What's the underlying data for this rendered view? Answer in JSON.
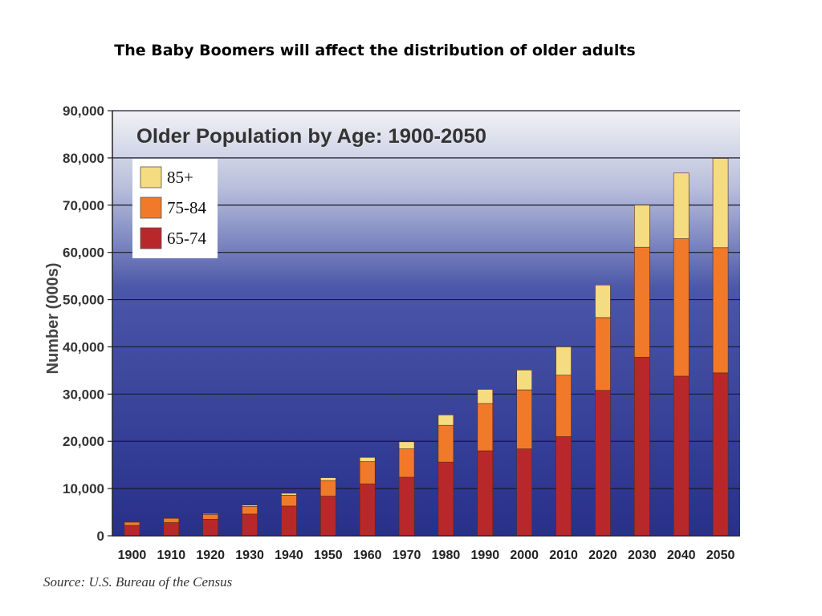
{
  "slide": {
    "title": "The Baby Boomers will affect the distribution of older adults",
    "source": "Source: U.S. Bureau of the Census"
  },
  "chart_data": {
    "type": "bar",
    "stacked": true,
    "title": "Older Population by Age: 1900-2050",
    "xlabel": "",
    "ylabel": "Number (000s)",
    "ylim": [
      0,
      90000
    ],
    "yticks": [
      0,
      10000,
      20000,
      30000,
      40000,
      50000,
      60000,
      70000,
      80000,
      90000
    ],
    "ytick_labels": [
      "0",
      "10,000",
      "20,000",
      "30,000",
      "40,000",
      "50,000",
      "60,000",
      "70,000",
      "80,000",
      "90,000"
    ],
    "grid": true,
    "legend_position": "top-left",
    "categories": [
      "1900",
      "1910",
      "1920",
      "1930",
      "1940",
      "1950",
      "1960",
      "1970",
      "1980",
      "1990",
      "2000",
      "2010",
      "2020",
      "2030",
      "2040",
      "2050"
    ],
    "series": [
      {
        "name": "65-74",
        "color": "#b8282a",
        "values": [
          2200,
          2800,
          3500,
          4600,
          6300,
          8400,
          11000,
          12400,
          15600,
          18000,
          18400,
          21000,
          30800,
          37800,
          33800,
          34500
        ]
      },
      {
        "name": "75-84",
        "color": "#f07a2a",
        "values": [
          700,
          900,
          1000,
          1600,
          2300,
          3300,
          4700,
          6000,
          7800,
          10000,
          12500,
          13000,
          15400,
          23300,
          29100,
          26500
        ]
      },
      {
        "name": "85+",
        "color": "#f6dc80",
        "values": [
          100,
          100,
          200,
          300,
          400,
          600,
          900,
          1500,
          2200,
          3000,
          4200,
          6000,
          6900,
          8900,
          13900,
          18900
        ]
      }
    ]
  }
}
